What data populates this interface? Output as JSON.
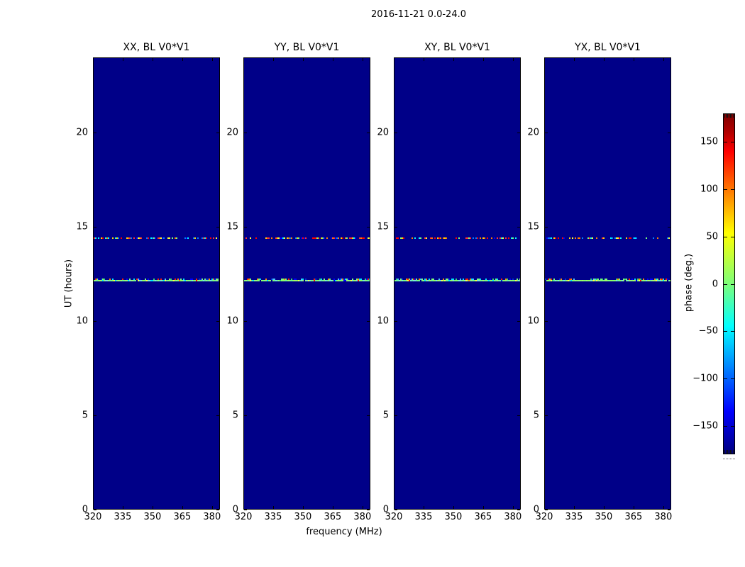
{
  "chart_data": {
    "type": "heatmap",
    "title": "2016-11-21 0.0-24.0",
    "xlabel": "frequency (MHz)",
    "ylabel": "UT (hours)",
    "xlim": [
      320,
      384
    ],
    "ylim": [
      0,
      24
    ],
    "x_ticks": [
      320,
      335,
      350,
      365,
      380
    ],
    "y_ticks": [
      0,
      5,
      10,
      15,
      20
    ],
    "panels": [
      {
        "title": "XX, BL V0*V1"
      },
      {
        "title": "YY, BL V0*V1"
      },
      {
        "title": "XY, BL V0*V1"
      },
      {
        "title": "YX, BL V0*V1"
      }
    ],
    "background_phase_deg": -180,
    "background_color": "#000088",
    "features": [
      {
        "name": "source-transit-line",
        "ut_hours": 12.2,
        "style": "solid-speckled",
        "dominant_phase_deg": 0,
        "dominant_color": "#7dff7a",
        "green_palette": [
          "#7dff7a",
          "#8cff66",
          "#96f77d",
          "#6ef2a0",
          "#a4f76d",
          "#7be8d8"
        ],
        "noise_palette": [
          "#0000ff",
          "#0030d8",
          "#ff2000",
          "#ff8c00",
          "#00e8ff",
          "#46c8ff",
          "#36d870"
        ]
      },
      {
        "name": "rfi-dotted-line",
        "ut_hours": 14.43,
        "style": "dotted-random",
        "palette": [
          "#ff0000",
          "#ff7f00",
          "#ffd800",
          "#ffff30",
          "#7dff7a",
          "#00ffff",
          "#0080ff",
          "#0000ff",
          "#ff3030"
        ]
      }
    ],
    "colorbar": {
      "label": "phase (deg.)",
      "min": -180,
      "max": 180,
      "ticks": [
        150,
        100,
        50,
        0,
        -50,
        -100,
        -150
      ],
      "colormap": "jet",
      "gradient_stops_top_to_bottom": [
        {
          "pos": 0.0,
          "color": "#7f0000"
        },
        {
          "pos": 0.055,
          "color": "#b40000"
        },
        {
          "pos": 0.11,
          "color": "#ff0000"
        },
        {
          "pos": 0.35,
          "color": "#ffff00"
        },
        {
          "pos": 0.5,
          "color": "#7dff7a"
        },
        {
          "pos": 0.625,
          "color": "#00ffff"
        },
        {
          "pos": 0.875,
          "color": "#0000ff"
        },
        {
          "pos": 1.0,
          "color": "#000080"
        }
      ]
    }
  }
}
